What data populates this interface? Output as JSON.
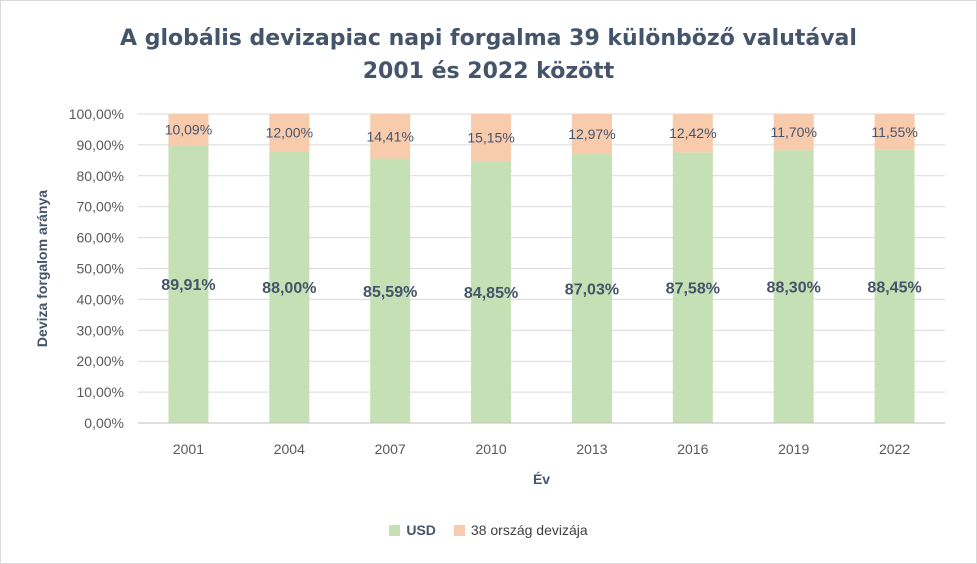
{
  "chart_data": {
    "type": "bar",
    "stacked": true,
    "title_line1": "A globális devizapiac napi forgalma 39 különböző valutával",
    "title_line2": "2001 és 2022 között",
    "xlabel": "Év",
    "ylabel": "Deviza forgalom aránya",
    "categories": [
      "2001",
      "2004",
      "2007",
      "2010",
      "2013",
      "2016",
      "2019",
      "2022"
    ],
    "y_ticks": [
      "0,00%",
      "10,00%",
      "20,00%",
      "30,00%",
      "40,00%",
      "50,00%",
      "60,00%",
      "70,00%",
      "80,00%",
      "90,00%",
      "100,00%"
    ],
    "ylim": [
      0,
      100
    ],
    "grid": true,
    "legend_position": "bottom",
    "series": [
      {
        "name": "USD",
        "color": "#c5e0b4",
        "values": [
          89.91,
          88.0,
          85.59,
          84.85,
          87.03,
          87.58,
          88.3,
          88.45
        ],
        "labels": [
          "89,91%",
          "88,00%",
          "85,59%",
          "84,85%",
          "87,03%",
          "87,58%",
          "88,30%",
          "88,45%"
        ]
      },
      {
        "name": "38 ország devizája",
        "color": "#f8cbad",
        "values": [
          10.09,
          12.0,
          14.41,
          15.15,
          12.97,
          12.42,
          11.7,
          11.55
        ],
        "labels": [
          "10,09%",
          "12,00%",
          "14,41%",
          "15,15%",
          "12,97%",
          "12,42%",
          "11,70%",
          "11,55%"
        ]
      }
    ]
  }
}
